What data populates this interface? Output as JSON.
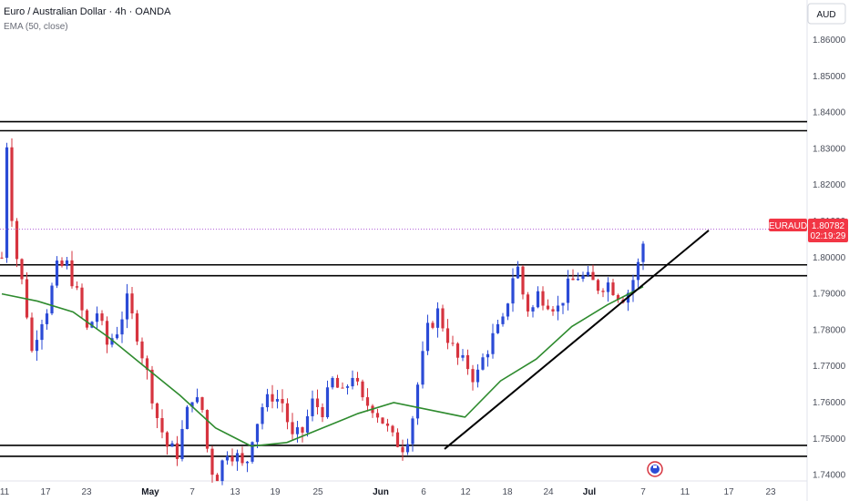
{
  "header": {
    "title": "Euro / Australian Dollar · 4h · OANDA",
    "indicator": "EMA (50, close)"
  },
  "currency_label": "AUD",
  "symbol_tag": {
    "symbol": "EURAUD",
    "price": "1.80782",
    "countdown": "02:19:29"
  },
  "colors": {
    "up": "#2b4bd6",
    "down": "#d6343f",
    "ema": "#2e8b2e",
    "tag_bg": "#f23645",
    "line": "#000000",
    "price_line": "#b05ad8"
  },
  "chart_data": {
    "type": "candlestick",
    "symbol": "EURAUD",
    "interval": "4h",
    "source": "OANDA",
    "ylim": [
      1.737,
      1.869
    ],
    "y_ticks": [
      "1.86000",
      "1.85000",
      "1.84000",
      "1.83000",
      "1.82000",
      "1.81000",
      "1.80000",
      "1.79000",
      "1.78000",
      "1.77000",
      "1.76000",
      "1.75000",
      "1.74000"
    ],
    "x_ticks": [
      {
        "label": "11"
      },
      {
        "label": "17"
      },
      {
        "label": "23"
      },
      {
        "label": "May",
        "bold": true
      },
      {
        "label": "7"
      },
      {
        "label": "13"
      },
      {
        "label": "19"
      },
      {
        "label": "25"
      },
      {
        "label": "Jun",
        "bold": true
      },
      {
        "label": "6"
      },
      {
        "label": "12"
      },
      {
        "label": "18"
      },
      {
        "label": "24"
      },
      {
        "label": "Jul",
        "bold": true
      },
      {
        "label": "7"
      },
      {
        "label": "11"
      },
      {
        "label": "17"
      },
      {
        "label": "23"
      }
    ],
    "price_path": [
      [
        0,
        1.8
      ],
      [
        0.5,
        1.818
      ],
      [
        1.2,
        1.837
      ],
      [
        2.0,
        1.812
      ],
      [
        3.0,
        1.8
      ],
      [
        4.5,
        1.79
      ],
      [
        6.0,
        1.774
      ],
      [
        7.5,
        1.782
      ],
      [
        9.0,
        1.786
      ],
      [
        11.0,
        1.797
      ],
      [
        13.0,
        1.798
      ],
      [
        15.0,
        1.79
      ],
      [
        17.0,
        1.78
      ],
      [
        19.0,
        1.785
      ],
      [
        21.0,
        1.776
      ],
      [
        23.0,
        1.78
      ],
      [
        25.0,
        1.788
      ],
      [
        27.0,
        1.779
      ],
      [
        29.0,
        1.768
      ],
      [
        31.0,
        1.756
      ],
      [
        33.0,
        1.748
      ],
      [
        35.0,
        1.746
      ],
      [
        36.5,
        1.755
      ],
      [
        38.0,
        1.762
      ],
      [
        40.0,
        1.758
      ],
      [
        41.5,
        1.742
      ],
      [
        43.0,
        1.74
      ],
      [
        45.0,
        1.747
      ],
      [
        47.0,
        1.745
      ],
      [
        48.5,
        1.741
      ],
      [
        50.0,
        1.751
      ],
      [
        52.0,
        1.759
      ],
      [
        54.0,
        1.762
      ],
      [
        56.0,
        1.76
      ],
      [
        58.0,
        1.75
      ],
      [
        60.0,
        1.752
      ],
      [
        62.0,
        1.76
      ],
      [
        64.0,
        1.758
      ],
      [
        66.0,
        1.766
      ],
      [
        68.0,
        1.762
      ],
      [
        70.0,
        1.768
      ],
      [
        72.0,
        1.76
      ],
      [
        74.0,
        1.759
      ],
      [
        76.0,
        1.755
      ],
      [
        78.0,
        1.75
      ],
      [
        80.0,
        1.748
      ],
      [
        81.5,
        1.752
      ],
      [
        83.0,
        1.765
      ],
      [
        85.0,
        1.78
      ],
      [
        87.0,
        1.785
      ],
      [
        89.0,
        1.778
      ],
      [
        91.0,
        1.772
      ],
      [
        93.0,
        1.77
      ],
      [
        94.5,
        1.766
      ],
      [
        96.0,
        1.772
      ],
      [
        98.0,
        1.778
      ],
      [
        100.0,
        1.782
      ],
      [
        102.0,
        1.795
      ],
      [
        103.0,
        1.797
      ],
      [
        104.0,
        1.79
      ],
      [
        105.5,
        1.784
      ],
      [
        107.0,
        1.79
      ],
      [
        109.0,
        1.788
      ],
      [
        111.0,
        1.786
      ],
      [
        113.0,
        1.792
      ],
      [
        115.0,
        1.795
      ],
      [
        117.0,
        1.794
      ],
      [
        119.0,
        1.792
      ],
      [
        121.0,
        1.793
      ],
      [
        123.0,
        1.79
      ],
      [
        124.5,
        1.789
      ],
      [
        126.0,
        1.794
      ],
      [
        127.5,
        1.8
      ],
      [
        128.5,
        1.808
      ]
    ],
    "ema": {
      "name": "EMA (50, close)",
      "x": [
        1.79,
        1.788,
        1.785,
        1.778,
        1.77,
        1.762,
        1.753,
        1.748,
        1.749,
        1.753,
        1.757,
        1.76,
        1.758,
        1.756,
        1.766,
        1.772,
        1.781,
        1.787,
        1.792
      ]
    },
    "horizontal_levels": [
      1.8375,
      1.835,
      1.798,
      1.795,
      1.7482,
      1.7452
    ],
    "trendline": {
      "from": [
        1.7472
      ],
      "to": [
        1.8075
      ]
    },
    "last_price": 1.80782
  }
}
